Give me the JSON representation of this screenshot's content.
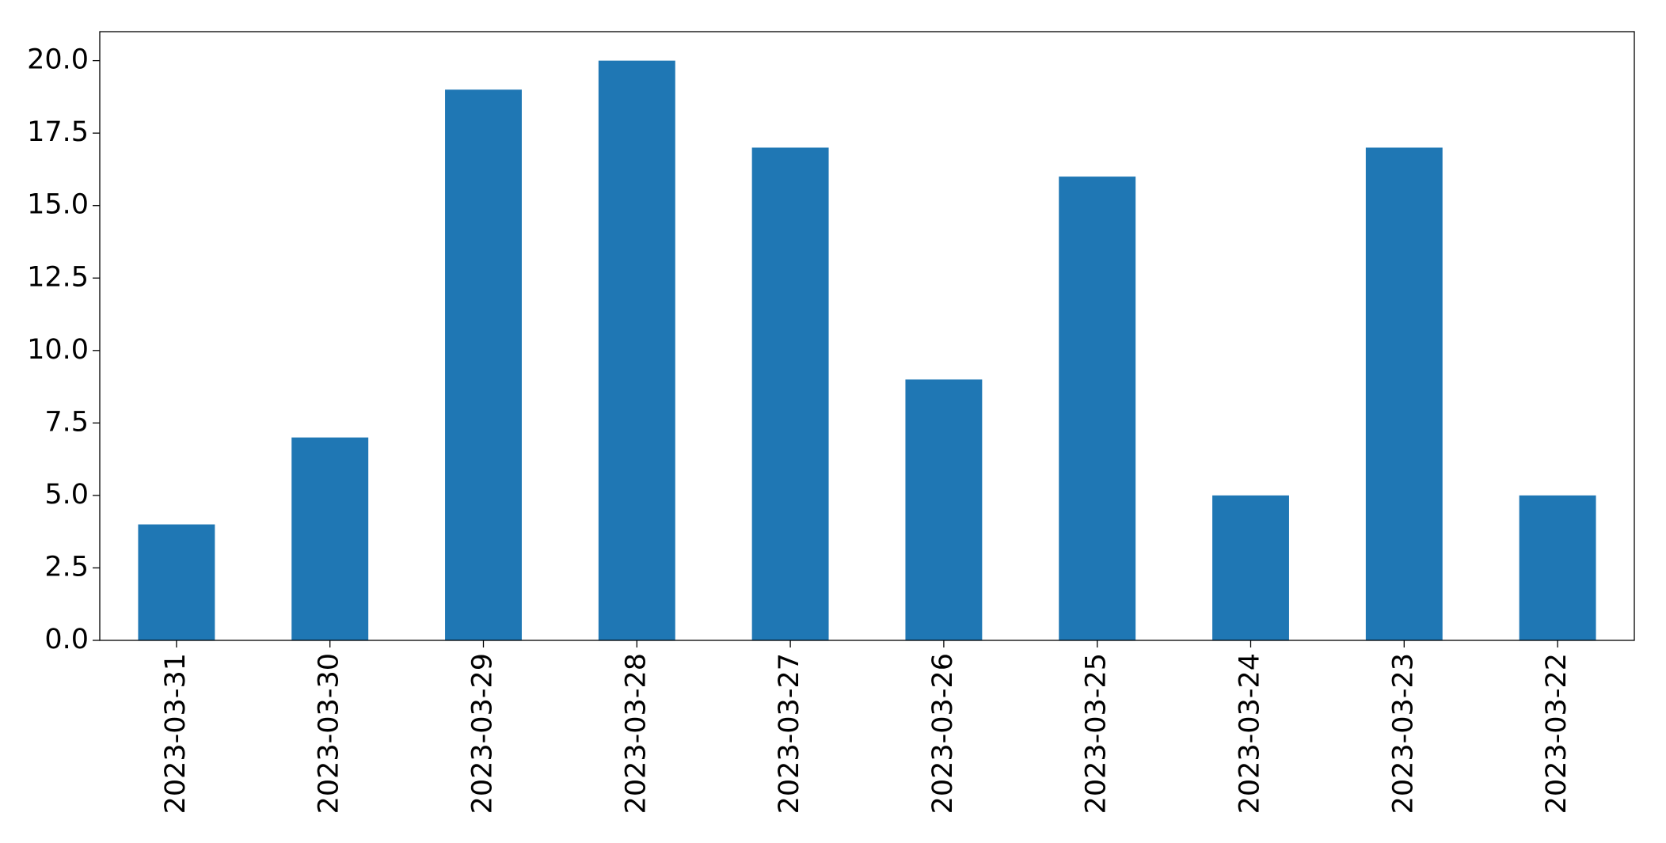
{
  "chart_data": {
    "type": "bar",
    "categories": [
      "2023-03-31",
      "2023-03-30",
      "2023-03-29",
      "2023-03-28",
      "2023-03-27",
      "2023-03-26",
      "2023-03-25",
      "2023-03-24",
      "2023-03-23",
      "2023-03-22"
    ],
    "values": [
      4,
      7,
      19,
      20,
      17,
      9,
      16,
      5,
      17,
      5
    ],
    "color": "#1f77b4",
    "ylim": [
      0,
      21
    ],
    "yticks": [
      {
        "value": 0,
        "label": "0.0"
      },
      2.5,
      {
        "value": 5,
        "label": "5.0"
      },
      7.5,
      {
        "value": 10,
        "label": "10.0"
      },
      12.5,
      {
        "value": 15,
        "label": "15.0"
      },
      17.5,
      {
        "value": 20,
        "label": "20.0"
      }
    ],
    "grid": false
  }
}
